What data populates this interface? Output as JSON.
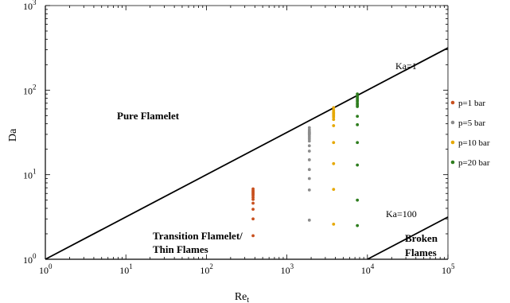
{
  "chart_data": {
    "type": "scatter",
    "title": "",
    "xlabel": "Re",
    "xlabel_sub": "t",
    "ylabel": "Da",
    "xscale": "log",
    "yscale": "log",
    "xlim": [
      1,
      100000
    ],
    "ylim": [
      1,
      1000
    ],
    "grid": false,
    "legend_position": "right",
    "x_ticks": [
      {
        "base": "10",
        "exp": "0"
      },
      {
        "base": "10",
        "exp": "1"
      },
      {
        "base": "10",
        "exp": "2"
      },
      {
        "base": "10",
        "exp": "3"
      },
      {
        "base": "10",
        "exp": "4"
      },
      {
        "base": "10",
        "exp": "5"
      }
    ],
    "y_ticks": [
      {
        "base": "10",
        "exp": "0"
      },
      {
        "base": "10",
        "exp": "1"
      },
      {
        "base": "10",
        "exp": "2"
      },
      {
        "base": "10",
        "exp": "3"
      }
    ],
    "lines": [
      {
        "label": "Ka=1",
        "x": [
          1,
          100000
        ],
        "y": [
          1,
          316.2
        ]
      },
      {
        "label": "Ka=100",
        "x": [
          10000,
          100000
        ],
        "y": [
          1,
          3.16
        ]
      }
    ],
    "regions": [
      {
        "lines": [
          "Pure Flamelet"
        ]
      },
      {
        "lines": [
          "Transition Flamelet/",
          "Thin Flames"
        ]
      },
      {
        "lines": [
          "Broken",
          "Flames"
        ]
      }
    ],
    "series": [
      {
        "name": "p=1 bar",
        "color": "#c8501e",
        "x": [
          380,
          380,
          380,
          380,
          380,
          380,
          380,
          380,
          380,
          380,
          380,
          380
        ],
        "y": [
          6.8,
          6.5,
          6.3,
          6.1,
          5.9,
          5.7,
          5.4,
          5.1,
          4.6,
          3.9,
          3.0,
          1.9
        ]
      },
      {
        "name": "p=5 bar",
        "color": "#8c8c8c",
        "x": [
          1900,
          1900,
          1900,
          1900,
          1900,
          1900,
          1900,
          1900,
          1900,
          1900,
          1900,
          1900,
          1900,
          1900,
          1900,
          1900,
          1900
        ],
        "y": [
          36,
          34,
          32.5,
          31,
          29.5,
          28,
          26.5,
          25,
          22,
          19,
          15,
          11.5,
          9,
          6.6,
          2.9,
          31.5,
          30.5
        ]
      },
      {
        "name": "p=10 bar",
        "color": "#e6a800",
        "x": [
          3800,
          3800,
          3800,
          3800,
          3800,
          3800,
          3800,
          3800,
          3800,
          3800,
          3800,
          3800,
          3800
        ],
        "y": [
          62,
          58,
          55,
          52,
          50,
          48,
          45,
          38,
          24,
          13.5,
          6.7,
          2.6,
          53.5
        ]
      },
      {
        "name": "p=20 bar",
        "color": "#2e7d1e",
        "x": [
          7500,
          7500,
          7500,
          7500,
          7500,
          7500,
          7500,
          7500,
          7500,
          7500,
          7500,
          7500,
          7500,
          7500
        ],
        "y": [
          90,
          85,
          81,
          77,
          74,
          70,
          67,
          64,
          49,
          39,
          24,
          13,
          5,
          2.5
        ]
      }
    ]
  }
}
